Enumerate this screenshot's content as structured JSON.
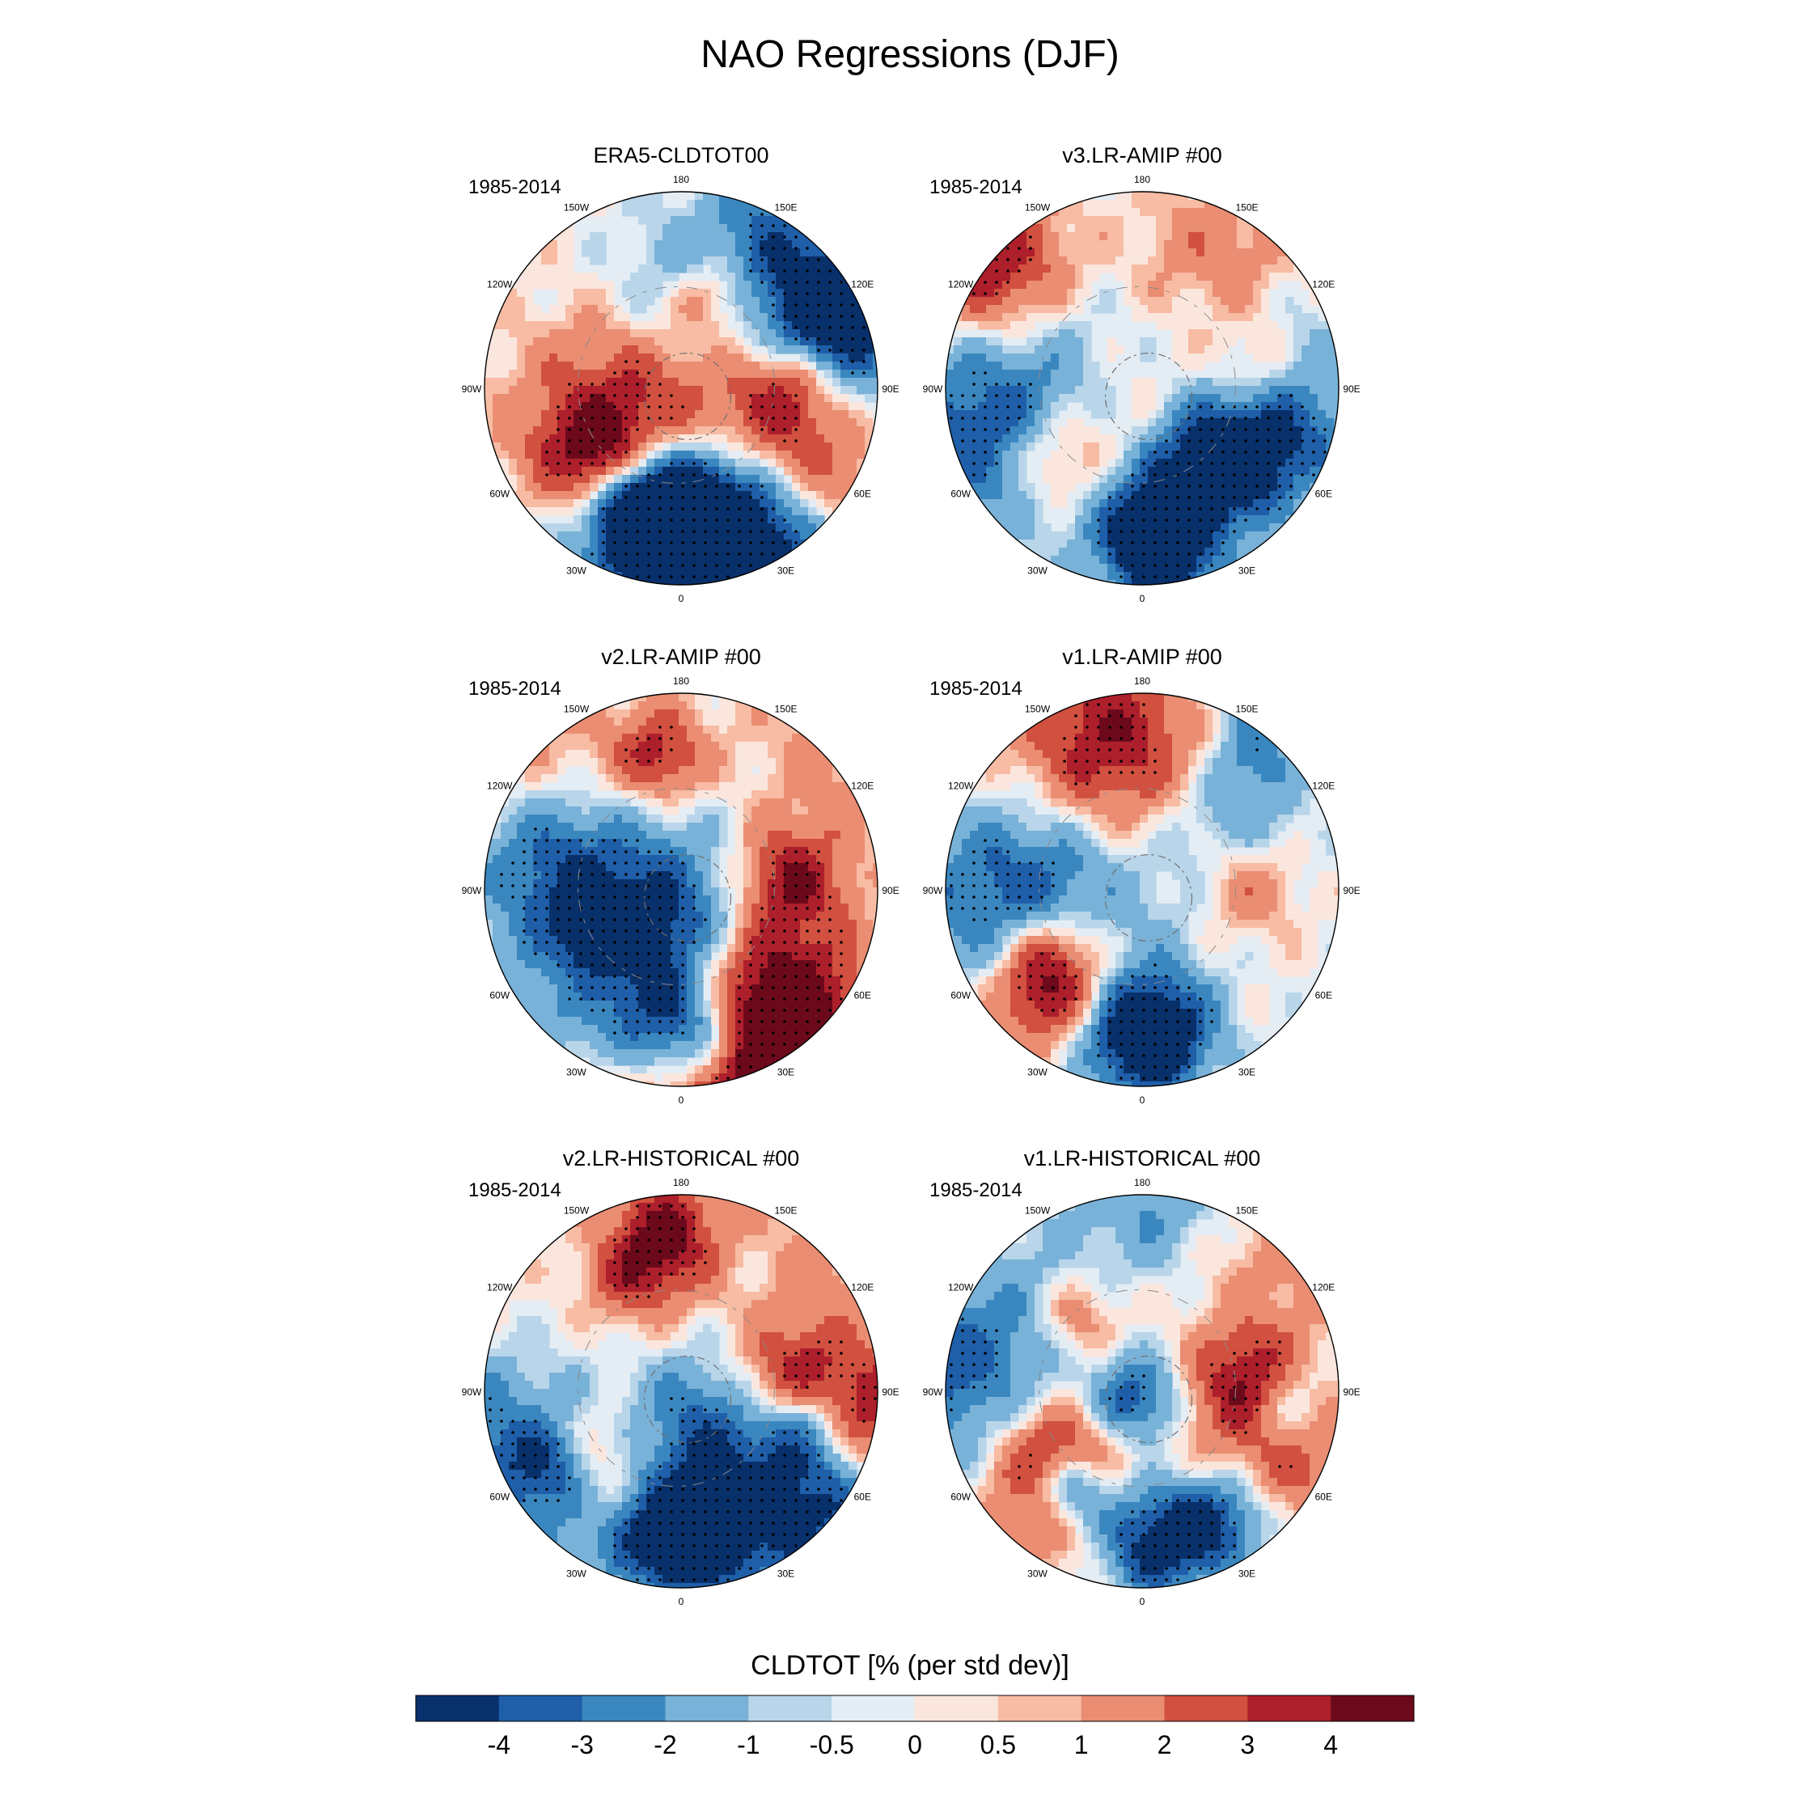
{
  "chart_data": {
    "type": "heatmap",
    "title": "NAO Regressions (DJF)",
    "projection": "north polar stereographic",
    "longitude_labels": [
      "180",
      "150E",
      "120E",
      "90E",
      "60E",
      "30E",
      "0",
      "30W",
      "60W",
      "90W",
      "120W",
      "150W"
    ],
    "panels": [
      {
        "name": "ERA5-CLDTOT00",
        "period": "1985-2014",
        "pattern_seed": 11
      },
      {
        "name": "v3.LR-AMIP  #00",
        "period": "1985-2014",
        "pattern_seed": 23
      },
      {
        "name": "v2.LR-AMIP  #00",
        "period": "1985-2014",
        "pattern_seed": 37
      },
      {
        "name": "v1.LR-AMIP  #00",
        "period": "1985-2014",
        "pattern_seed": 41
      },
      {
        "name": "v2.LR-HISTORICAL  #00",
        "period": "1985-2014",
        "pattern_seed": 53
      },
      {
        "name": "v1.LR-HISTORICAL  #00",
        "period": "1985-2014",
        "pattern_seed": 67
      }
    ],
    "colorbar": {
      "label": "CLDTOT [% (per std dev)]",
      "levels": [
        "-4",
        "-3",
        "-2",
        "-1",
        "-0.5",
        "0",
        "0.5",
        "1",
        "2",
        "3",
        "4"
      ],
      "level_values": [
        -4,
        -3,
        -2,
        -1,
        -0.5,
        0,
        0.5,
        1,
        2,
        3,
        4
      ],
      "colors": [
        "#08306b",
        "#1f5ea8",
        "#3a87c0",
        "#79b2d8",
        "#b9d5ea",
        "#e4edf4",
        "#fbe6de",
        "#f7bca3",
        "#ea8d72",
        "#d1503f",
        "#ad1f2b",
        "#6c0a1c"
      ]
    }
  }
}
